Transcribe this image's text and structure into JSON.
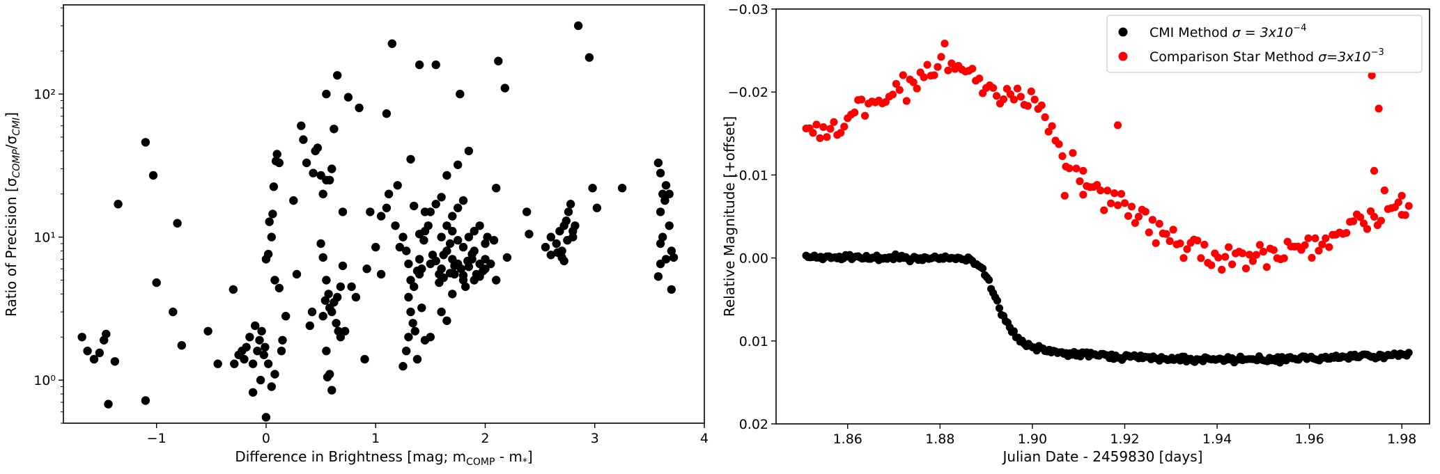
{
  "chart_data": [
    {
      "type": "scatter",
      "xlabel": "Difference in Brightness [mag; m",
      "xlabel_sub1": "COMP",
      "xlabel_mid": " - m",
      "xlabel_sub2": "*",
      "xlabel_end": "]",
      "ylabel": "Ratio of Precision [σ",
      "ylabel_sub1": "COMP",
      "ylabel_mid": "/σ",
      "ylabel_sub2": "CMI",
      "ylabel_end": "]",
      "yscale": "log",
      "xlim": [
        -1.85,
        4.0
      ],
      "ylim": [
        0.5,
        420
      ],
      "xticks": [
        -1,
        0,
        1,
        2,
        3,
        4
      ],
      "xtick_labels": [
        "−1",
        "0",
        "1",
        "2",
        "3",
        "4"
      ],
      "yticks": [
        1,
        10,
        100
      ],
      "ytick_labels": [
        "10⁰",
        "10¹",
        "10²"
      ],
      "color": "#000000",
      "points": [
        [
          -1.68,
          2.0
        ],
        [
          -1.63,
          1.6
        ],
        [
          -1.57,
          1.4
        ],
        [
          -1.52,
          1.55
        ],
        [
          -1.48,
          1.9
        ],
        [
          -1.46,
          2.1
        ],
        [
          -1.44,
          0.68
        ],
        [
          -1.38,
          1.35
        ],
        [
          -1.35,
          17
        ],
        [
          -1.1,
          46
        ],
        [
          -1.1,
          0.72
        ],
        [
          -1.03,
          27
        ],
        [
          -1.0,
          4.8
        ],
        [
          -0.85,
          3.0
        ],
        [
          -0.81,
          12.5
        ],
        [
          -0.77,
          1.75
        ],
        [
          -0.53,
          2.2
        ],
        [
          -0.44,
          1.3
        ],
        [
          -0.3,
          4.3
        ],
        [
          -0.29,
          1.3
        ],
        [
          -0.25,
          1.5
        ],
        [
          -0.22,
          1.6
        ],
        [
          -0.2,
          1.4
        ],
        [
          -0.18,
          1.7
        ],
        [
          -0.15,
          2.0
        ],
        [
          -0.12,
          1.3
        ],
        [
          -0.1,
          2.4
        ],
        [
          -0.08,
          1.6
        ],
        [
          -0.06,
          1.9
        ],
        [
          -0.04,
          2.2
        ],
        [
          -0.02,
          1.5
        ],
        [
          -0.01,
          1.7
        ],
        [
          -0.12,
          0.82
        ],
        [
          -0.05,
          1.0
        ],
        [
          0.0,
          0.55
        ],
        [
          0.02,
          1.3
        ],
        [
          0.0,
          7.0
        ],
        [
          0.02,
          7.6
        ],
        [
          0.03,
          12.8
        ],
        [
          0.05,
          10.0
        ],
        [
          0.06,
          14.5
        ],
        [
          0.07,
          22.5
        ],
        [
          0.09,
          34
        ],
        [
          0.1,
          38
        ],
        [
          0.12,
          33
        ],
        [
          0.08,
          5.0
        ],
        [
          0.12,
          4.4
        ],
        [
          0.08,
          1.1
        ],
        [
          0.14,
          1.6
        ],
        [
          0.15,
          1.9
        ],
        [
          0.05,
          0.9
        ],
        [
          0.18,
          2.8
        ],
        [
          0.25,
          18
        ],
        [
          0.28,
          5.5
        ],
        [
          0.32,
          60
        ],
        [
          0.34,
          48
        ],
        [
          0.37,
          33
        ],
        [
          0.4,
          2.4
        ],
        [
          0.42,
          3.0
        ],
        [
          0.43,
          28
        ],
        [
          0.45,
          40
        ],
        [
          0.47,
          42
        ],
        [
          0.5,
          27
        ],
        [
          0.52,
          20
        ],
        [
          0.55,
          25
        ],
        [
          0.5,
          9.0
        ],
        [
          0.52,
          7.2
        ],
        [
          0.55,
          5.0
        ],
        [
          0.57,
          4.0
        ],
        [
          0.58,
          3.2
        ],
        [
          0.6,
          3.0
        ],
        [
          0.62,
          3.5
        ],
        [
          0.64,
          2.5
        ],
        [
          0.66,
          2.2
        ],
        [
          0.68,
          2.0
        ],
        [
          0.55,
          1.6
        ],
        [
          0.56,
          1.05
        ],
        [
          0.58,
          1.1
        ],
        [
          0.6,
          0.85
        ],
        [
          0.52,
          2.8
        ],
        [
          0.54,
          3.6
        ],
        [
          0.65,
          3.8
        ],
        [
          0.68,
          4.5
        ],
        [
          0.7,
          6.3
        ],
        [
          0.72,
          2.2
        ],
        [
          0.62,
          57
        ],
        [
          0.58,
          25
        ],
        [
          0.6,
          30
        ],
        [
          0.55,
          100
        ],
        [
          0.65,
          135
        ],
        [
          0.75,
          95
        ],
        [
          0.85,
          80
        ],
        [
          0.7,
          15
        ],
        [
          0.78,
          4.5
        ],
        [
          0.82,
          3.8
        ],
        [
          0.9,
          1.4
        ],
        [
          0.92,
          6.0
        ],
        [
          0.95,
          15
        ],
        [
          1.0,
          8.5
        ],
        [
          1.05,
          5.5
        ],
        [
          1.05,
          14
        ],
        [
          1.1,
          16
        ],
        [
          1.12,
          20
        ],
        [
          1.1,
          73
        ],
        [
          1.15,
          225
        ],
        [
          1.2,
          23
        ],
        [
          1.18,
          12
        ],
        [
          1.22,
          8.5
        ],
        [
          1.25,
          10
        ],
        [
          1.28,
          8.0
        ],
        [
          1.3,
          6.5
        ],
        [
          1.32,
          5.0
        ],
        [
          1.35,
          4.5
        ],
        [
          1.38,
          5.8
        ],
        [
          1.4,
          7.0
        ],
        [
          1.42,
          6.0
        ],
        [
          1.44,
          9.5
        ],
        [
          1.45,
          15
        ],
        [
          1.48,
          12
        ],
        [
          1.5,
          6.5
        ],
        [
          1.52,
          7.5
        ],
        [
          1.55,
          6.8
        ],
        [
          1.58,
          5.5
        ],
        [
          1.6,
          6.0
        ],
        [
          1.62,
          7.5
        ],
        [
          1.65,
          8.0
        ],
        [
          1.68,
          9.0
        ],
        [
          1.7,
          7.0
        ],
        [
          1.72,
          5.5
        ],
        [
          1.75,
          6.5
        ],
        [
          1.78,
          6.0
        ],
        [
          1.8,
          5.0
        ],
        [
          1.82,
          4.5
        ],
        [
          1.85,
          6.2
        ],
        [
          1.88,
          7.0
        ],
        [
          1.9,
          8.0
        ],
        [
          1.92,
          5.5
        ],
        [
          1.95,
          6.5
        ],
        [
          1.98,
          5.8
        ],
        [
          2.0,
          9.0
        ],
        [
          2.02,
          10
        ],
        [
          1.65,
          12
        ],
        [
          1.7,
          14
        ],
        [
          1.75,
          16
        ],
        [
          1.8,
          18
        ],
        [
          1.6,
          19
        ],
        [
          1.55,
          17
        ],
        [
          1.5,
          15
        ],
        [
          1.45,
          11
        ],
        [
          1.4,
          10.5
        ],
        [
          1.35,
          16.5
        ],
        [
          1.3,
          3.8
        ],
        [
          1.32,
          3.0
        ],
        [
          1.34,
          2.5
        ],
        [
          1.36,
          2.2
        ],
        [
          1.3,
          2.0
        ],
        [
          1.28,
          1.6
        ],
        [
          1.25,
          1.25
        ],
        [
          1.4,
          5.5
        ],
        [
          1.42,
          3.2
        ],
        [
          1.45,
          1.9
        ],
        [
          1.5,
          2.0
        ],
        [
          1.6,
          3.0
        ],
        [
          1.65,
          2.6
        ],
        [
          1.7,
          4.0
        ],
        [
          1.38,
          1.4
        ],
        [
          1.32,
          35
        ],
        [
          1.55,
          160
        ],
        [
          1.65,
          27
        ],
        [
          1.75,
          32
        ],
        [
          1.85,
          40
        ],
        [
          1.77,
          100
        ],
        [
          1.4,
          160
        ],
        [
          2.12,
          170
        ],
        [
          2.18,
          110
        ],
        [
          2.1,
          22
        ],
        [
          2.2,
          7.2
        ],
        [
          2.05,
          6.5
        ],
        [
          2.08,
          9.5
        ],
        [
          2.1,
          5.0
        ],
        [
          1.85,
          10
        ],
        [
          1.9,
          11
        ],
        [
          1.95,
          12
        ],
        [
          2.0,
          7.0
        ],
        [
          1.8,
          8.5
        ],
        [
          1.75,
          9.5
        ],
        [
          1.7,
          11
        ],
        [
          1.6,
          10
        ],
        [
          1.58,
          4.8
        ],
        [
          1.62,
          5.2
        ],
        [
          1.68,
          5.6
        ],
        [
          1.72,
          6.3
        ],
        [
          1.9,
          5.0
        ],
        [
          1.95,
          5.3
        ],
        [
          2.0,
          6.0
        ],
        [
          1.8,
          5.4
        ],
        [
          1.84,
          6.8
        ],
        [
          1.88,
          7.6
        ],
        [
          2.38,
          15
        ],
        [
          2.4,
          10.5
        ],
        [
          2.55,
          8.5
        ],
        [
          2.6,
          10
        ],
        [
          2.65,
          9.0
        ],
        [
          2.68,
          11
        ],
        [
          2.7,
          8.0
        ],
        [
          2.72,
          12
        ],
        [
          2.74,
          13
        ],
        [
          2.76,
          15
        ],
        [
          2.78,
          17
        ],
        [
          2.8,
          10
        ],
        [
          2.82,
          12
        ],
        [
          2.6,
          7.5
        ],
        [
          2.66,
          7.8
        ],
        [
          2.7,
          7.2
        ],
        [
          2.75,
          9.5
        ],
        [
          2.8,
          11
        ],
        [
          2.85,
          300
        ],
        [
          2.95,
          180
        ],
        [
          2.98,
          22
        ],
        [
          3.02,
          16
        ],
        [
          3.25,
          22
        ],
        [
          2.72,
          6.8
        ],
        [
          3.58,
          33
        ],
        [
          3.6,
          28
        ],
        [
          3.62,
          20
        ],
        [
          3.65,
          23
        ],
        [
          3.6,
          15
        ],
        [
          3.64,
          18
        ],
        [
          3.68,
          20
        ],
        [
          3.6,
          9
        ],
        [
          3.62,
          10
        ],
        [
          3.65,
          7
        ],
        [
          3.68,
          12
        ],
        [
          3.7,
          8
        ],
        [
          3.72,
          7.2
        ],
        [
          3.58,
          5.3
        ],
        [
          3.6,
          6.5
        ],
        [
          3.7,
          4.3
        ]
      ]
    },
    {
      "type": "scatter",
      "xlabel": "Julian Date - 2459830 [days]",
      "ylabel": "Relative Magnitude [+offset]",
      "xlim": [
        1.8445,
        1.986
      ],
      "ylim": [
        0.02,
        -0.03
      ],
      "xticks": [
        1.86,
        1.88,
        1.9,
        1.92,
        1.94,
        1.96,
        1.98
      ],
      "xtick_labels": [
        "1.86",
        "1.88",
        "1.90",
        "1.92",
        "1.94",
        "1.96",
        "1.98"
      ],
      "yticks": [
        -0.03,
        -0.02,
        -0.01,
        0.0,
        0.01,
        0.02
      ],
      "ytick_labels": [
        "−0.03",
        "−0.02",
        "−0.01",
        "0.00",
        "0.01",
        "0.02"
      ],
      "legend_position": "top-right",
      "series": [
        {
          "name": "CMI Method σ = 3x10⁻⁴",
          "legend_prefix": "CMI Method ",
          "legend_sigma": "σ = 3x10",
          "legend_exp": "−4",
          "color": "#000000",
          "anchors": [
            [
              1.851,
              0.0
            ],
            [
              1.875,
              0.0
            ],
            [
              1.884,
              0.0
            ],
            [
              1.887,
              0.0003
            ],
            [
              1.889,
              0.0012
            ],
            [
              1.891,
              0.0035
            ],
            [
              1.893,
              0.0062
            ],
            [
              1.895,
              0.0083
            ],
            [
              1.897,
              0.0098
            ],
            [
              1.9,
              0.0108
            ],
            [
              1.905,
              0.0114
            ],
            [
              1.915,
              0.0118
            ],
            [
              1.935,
              0.0122
            ],
            [
              1.945,
              0.0123
            ],
            [
              1.96,
              0.0121
            ],
            [
              1.975,
              0.0118
            ],
            [
              1.9815,
              0.0115
            ]
          ]
        },
        {
          "name": "Comparison Star Method σ=3x10⁻³",
          "legend_prefix": "Comparison Star Method ",
          "legend_sigma": "σ=3x10",
          "legend_exp": "−3",
          "color": "#ff0000",
          "anchors": [
            [
              1.851,
              -0.0165
            ],
            [
              1.855,
              -0.0152
            ],
            [
              1.858,
              -0.0155
            ],
            [
              1.862,
              -0.0175
            ],
            [
              1.866,
              -0.019
            ],
            [
              1.871,
              -0.0205
            ],
            [
              1.876,
              -0.0218
            ],
            [
              1.881,
              -0.0235
            ],
            [
              1.884,
              -0.0232
            ],
            [
              1.888,
              -0.0215
            ],
            [
              1.892,
              -0.02
            ],
            [
              1.896,
              -0.0203
            ],
            [
              1.9,
              -0.0188
            ],
            [
              1.903,
              -0.0165
            ],
            [
              1.906,
              -0.0135
            ],
            [
              1.909,
              -0.0105
            ],
            [
              1.913,
              -0.0088
            ],
            [
              1.917,
              -0.0068
            ],
            [
              1.921,
              -0.0052
            ],
            [
              1.926,
              -0.0035
            ],
            [
              1.931,
              -0.0025
            ],
            [
              1.937,
              -0.0005
            ],
            [
              1.943,
              0.0005
            ],
            [
              1.947,
              0.0
            ],
            [
              1.952,
              -0.0008
            ],
            [
              1.958,
              -0.0012
            ],
            [
              1.963,
              -0.0025
            ],
            [
              1.968,
              -0.004
            ],
            [
              1.973,
              -0.0048
            ],
            [
              1.978,
              -0.0065
            ],
            [
              1.9815,
              -0.0068
            ]
          ]
        }
      ],
      "outliers": [
        [
          1.911,
          -0.0105
        ],
        [
          1.9185,
          -0.016
        ],
        [
          1.9735,
          -0.022
        ],
        [
          1.975,
          -0.018
        ],
        [
          1.974,
          -0.0105
        ],
        [
          1.98,
          -0.0075
        ],
        [
          1.907,
          -0.0075
        ]
      ]
    }
  ]
}
